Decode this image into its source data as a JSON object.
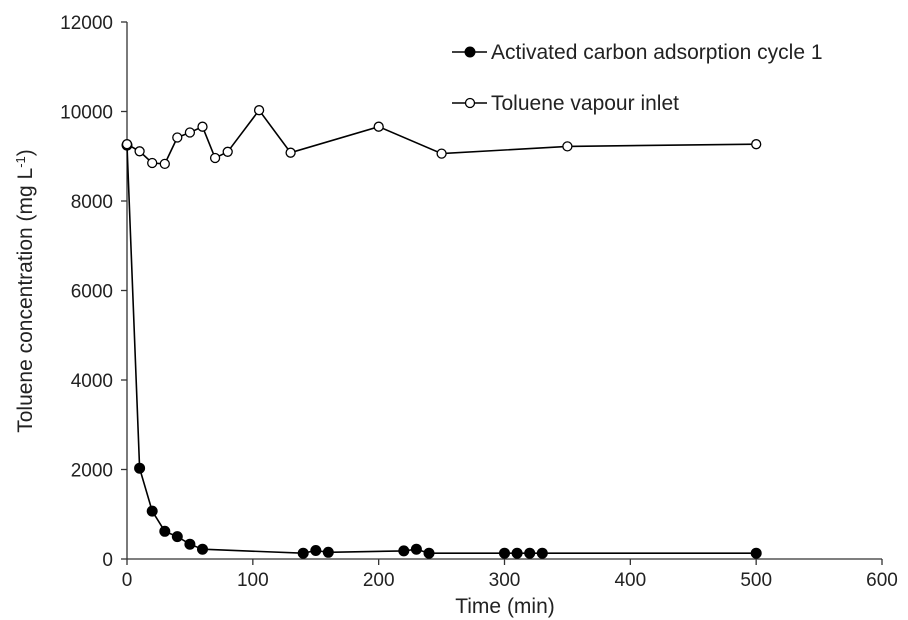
{
  "chart_data": {
    "type": "line",
    "title": "",
    "xlabel": "Time (min)",
    "ylabel": {
      "main": "Toluene concentration (mg L",
      "sup": "-1",
      "end": ")"
    },
    "xlim": [
      0,
      600
    ],
    "ylim": [
      0,
      12000
    ],
    "xticks": [
      "0",
      "100",
      "200",
      "300",
      "400",
      "500",
      "600"
    ],
    "yticks": [
      "0",
      "2000",
      "4000",
      "6000",
      "8000",
      "10000",
      "12000"
    ],
    "grid": false,
    "legend_position": "top-right",
    "series": [
      {
        "name": "Activated carbon adsorption cycle 1",
        "marker": "filled-circle",
        "color": "#000000",
        "x": [
          0,
          10,
          20,
          30,
          40,
          50,
          60,
          140,
          150,
          160,
          220,
          230,
          240,
          300,
          310,
          320,
          330,
          500
        ],
        "y": [
          9250,
          2030,
          1070,
          620,
          500,
          330,
          220,
          130,
          190,
          150,
          180,
          220,
          130,
          130,
          130,
          130,
          130,
          130
        ]
      },
      {
        "name": "Toluene vapour inlet",
        "marker": "open-circle",
        "color": "#000000",
        "x": [
          0,
          10,
          20,
          30,
          40,
          50,
          60,
          70,
          80,
          105,
          130,
          200,
          250,
          350,
          500
        ],
        "y": [
          9270,
          9110,
          8850,
          8830,
          9420,
          9530,
          9660,
          8960,
          9100,
          10030,
          9080,
          9660,
          9060,
          9220,
          9270
        ]
      }
    ]
  }
}
